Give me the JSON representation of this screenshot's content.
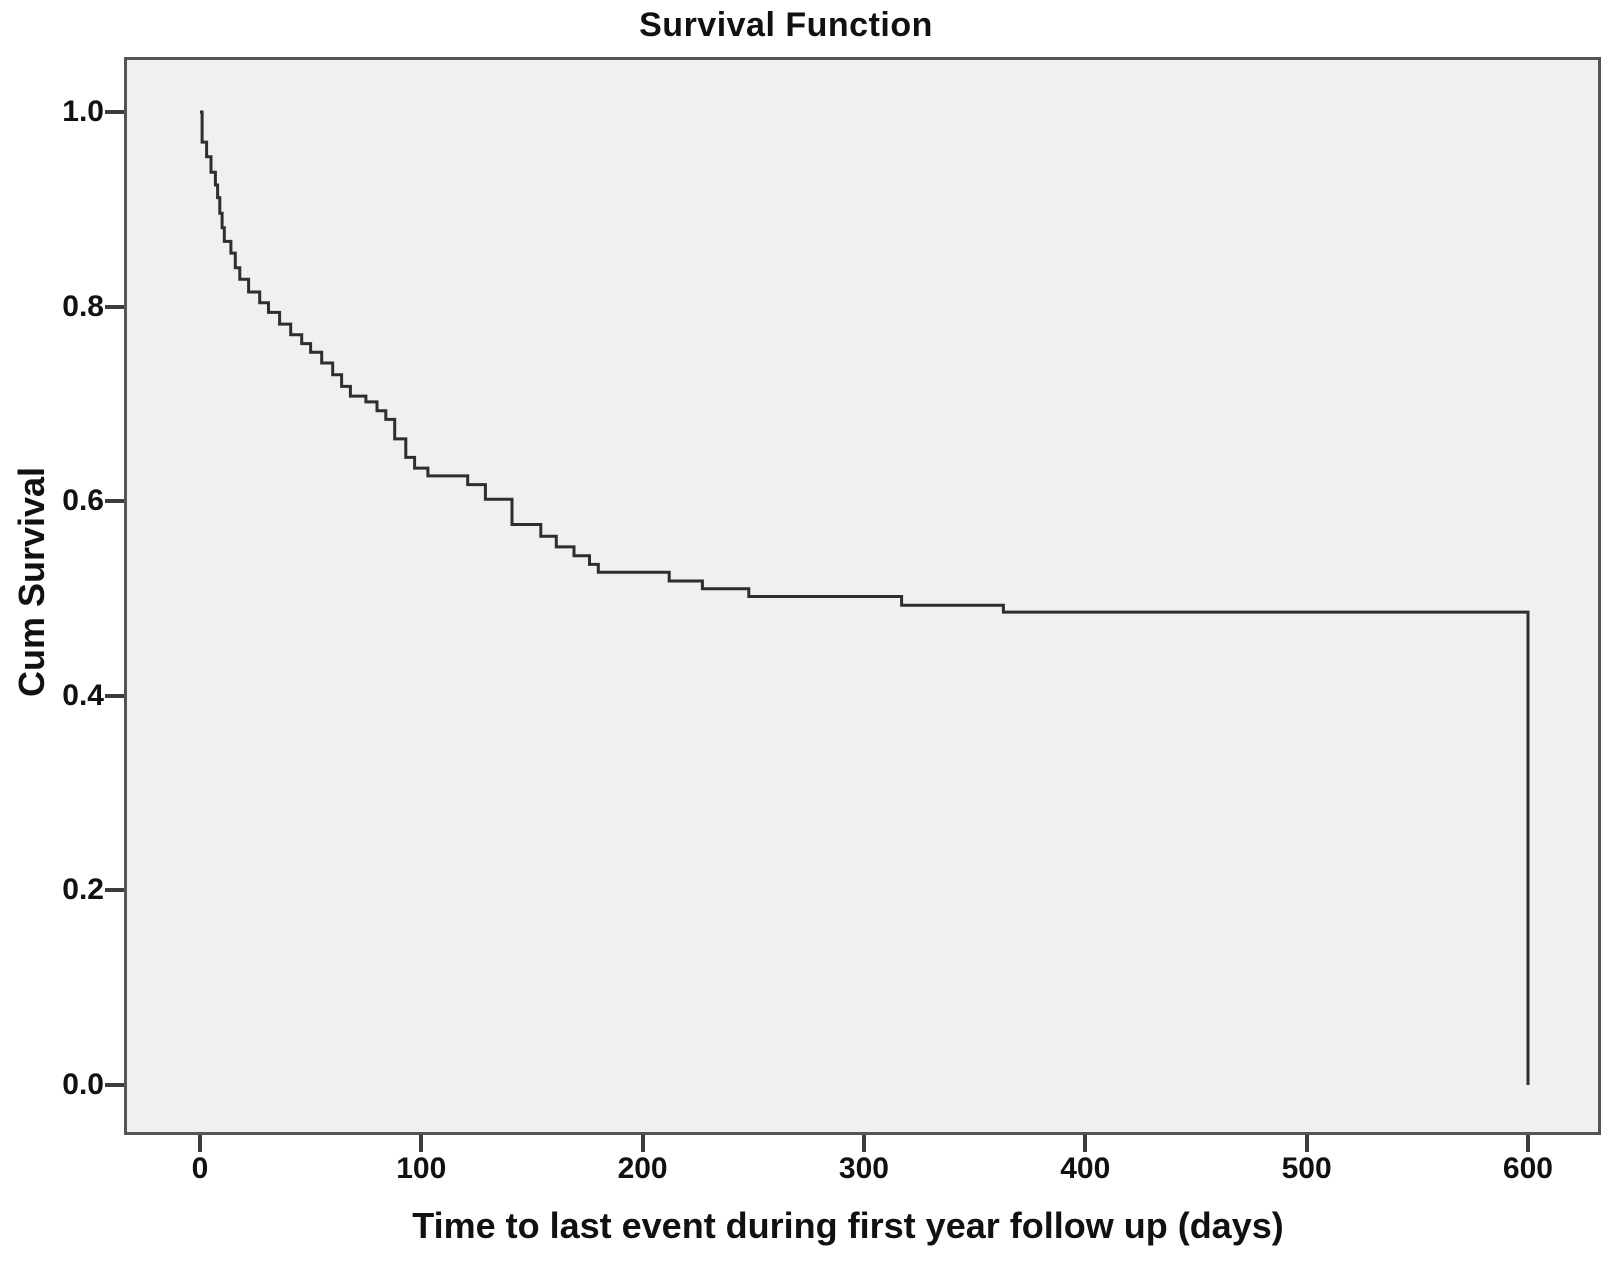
{
  "chart_data": {
    "type": "line",
    "subtype": "kaplan-meier-step",
    "title": "Survival Function",
    "xlabel": "Time to last event during first year follow up (days)",
    "ylabel": "Cum Survival",
    "x_tick_values": [
      0,
      100,
      200,
      300,
      400,
      500,
      600
    ],
    "x_tick_labels": [
      "0",
      "100",
      "200",
      "300",
      "400",
      "500",
      "600"
    ],
    "y_tick_values": [
      1.0,
      0.8,
      0.6,
      0.4,
      0.2,
      0.0
    ],
    "y_tick_labels": [
      "1.0",
      "0.8",
      "0.6",
      "0.4",
      "0.2",
      "0.0"
    ],
    "xlim": [
      -34.3,
      633.0
    ],
    "ylim": [
      -0.0514,
      1.0565
    ],
    "grid": false,
    "legend": null,
    "plot_bg_color": "#f0f0f0",
    "line_color": "#2e2e2e",
    "series": [
      {
        "name": "Survival Function",
        "time": [
          0,
          1,
          3,
          5,
          7,
          8,
          9,
          10,
          11,
          14,
          16,
          18,
          22,
          27,
          31,
          36,
          41,
          46,
          50,
          55,
          60,
          64,
          68,
          75,
          80,
          84,
          88,
          93,
          97,
          103,
          121,
          129,
          141,
          154,
          161,
          169,
          176,
          180,
          212,
          227,
          248,
          317,
          363,
          600
        ],
        "survival": [
          1.0,
          0.969,
          0.954,
          0.938,
          0.925,
          0.912,
          0.896,
          0.881,
          0.867,
          0.855,
          0.84,
          0.828,
          0.815,
          0.804,
          0.794,
          0.782,
          0.771,
          0.762,
          0.753,
          0.742,
          0.73,
          0.718,
          0.708,
          0.702,
          0.693,
          0.684,
          0.664,
          0.645,
          0.634,
          0.626,
          0.617,
          0.602,
          0.576,
          0.564,
          0.553,
          0.544,
          0.535,
          0.527,
          0.518,
          0.51,
          0.502,
          0.493,
          0.486,
          0.0
        ]
      }
    ]
  }
}
